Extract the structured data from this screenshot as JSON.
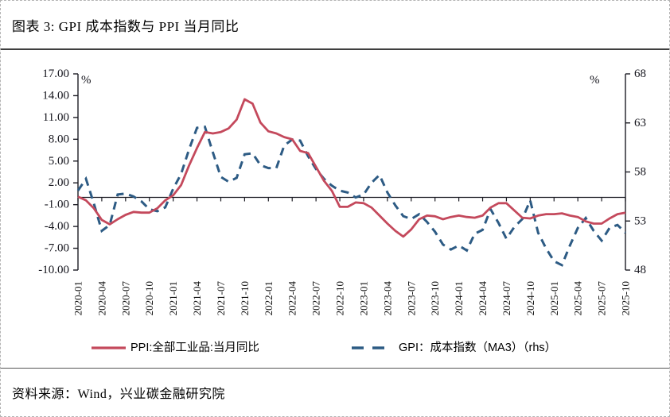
{
  "figure": {
    "title": "图表 3: GPI 成本指数与 PPI 当月同比",
    "source": "资料来源：Wind，兴业碳金融研究院"
  },
  "chart_data": {
    "type": "line",
    "x": [
      "2020-01",
      "2020-02",
      "2020-03",
      "2020-04",
      "2020-05",
      "2020-06",
      "2020-07",
      "2020-08",
      "2020-09",
      "2020-10",
      "2020-11",
      "2020-12",
      "2021-01",
      "2021-02",
      "2021-03",
      "2021-04",
      "2021-05",
      "2021-06",
      "2021-07",
      "2021-08",
      "2021-09",
      "2021-10",
      "2021-11",
      "2021-12",
      "2022-01",
      "2022-02",
      "2022-03",
      "2022-04",
      "2022-05",
      "2022-06",
      "2022-07",
      "2022-08",
      "2022-09",
      "2022-10",
      "2022-11",
      "2022-12",
      "2023-01",
      "2023-02",
      "2023-03",
      "2023-04",
      "2023-05",
      "2023-06",
      "2023-07",
      "2023-08",
      "2023-09",
      "2023-10",
      "2023-11",
      "2023-12",
      "2024-01",
      "2024-02",
      "2024-03",
      "2024-04",
      "2024-05",
      "2024-06",
      "2024-07",
      "2024-08",
      "2024-09",
      "2024-10",
      "2024-11",
      "2024-12",
      "2025-01",
      "2025-02",
      "2025-03",
      "2025-04",
      "2025-05",
      "2025-06",
      "2025-07",
      "2025-08",
      "2025-09",
      "2025-10"
    ],
    "x_tick_every": 3,
    "series": [
      {
        "name": "PPI:全部工业品:当月同比",
        "axis": "left",
        "style": "solid",
        "color": "#c4495c",
        "values": [
          0.1,
          -0.4,
          -1.5,
          -3.1,
          -3.7,
          -3.0,
          -2.4,
          -2.0,
          -2.1,
          -2.1,
          -1.5,
          -0.4,
          0.3,
          1.7,
          4.4,
          6.8,
          9.0,
          8.8,
          9.0,
          9.5,
          10.7,
          13.5,
          12.9,
          10.3,
          9.1,
          8.8,
          8.3,
          8.0,
          6.4,
          6.1,
          4.2,
          2.3,
          0.9,
          -1.3,
          -1.3,
          -0.7,
          -0.8,
          -1.4,
          -2.5,
          -3.6,
          -4.6,
          -5.4,
          -4.4,
          -3.0,
          -2.5,
          -2.6,
          -3.0,
          -2.7,
          -2.5,
          -2.7,
          -2.8,
          -2.5,
          -1.4,
          -0.8,
          -0.8,
          -1.8,
          -2.8,
          -2.9,
          -2.5,
          -2.3,
          -2.3,
          -2.2,
          -2.5,
          -2.7,
          -3.3,
          -3.6,
          -3.6,
          -2.9,
          -2.3,
          -2.1
        ]
      },
      {
        "name": "GPI：成本指数（MA3）（rhs）",
        "axis": "right",
        "style": "dashed",
        "color": "#2d5b84",
        "values": [
          56.1,
          57.3,
          54.8,
          52.0,
          52.6,
          55.7,
          55.8,
          55.5,
          55.0,
          54.2,
          54.0,
          54.4,
          56.3,
          57.8,
          60.3,
          62.5,
          62.6,
          60.0,
          57.5,
          57.0,
          57.4,
          59.8,
          59.9,
          58.7,
          58.4,
          58.4,
          60.7,
          61.3,
          61.2,
          59.6,
          58.3,
          57.3,
          56.6,
          56.1,
          55.9,
          55.4,
          55.7,
          56.9,
          57.7,
          55.9,
          54.6,
          53.5,
          53.2,
          53.7,
          52.9,
          51.9,
          50.6,
          50.1,
          50.5,
          50.0,
          51.7,
          52.1,
          54.2,
          52.8,
          51.2,
          52.4,
          53.2,
          55.1,
          51.8,
          50.2,
          48.9,
          48.5,
          50.5,
          52.3,
          53.3,
          52.0,
          51.0,
          52.3,
          52.6,
          51.8
        ]
      }
    ],
    "left_axis": {
      "unit": "%",
      "min": -10,
      "max": 17,
      "tick_labels": [
        "17.00",
        "14.00",
        "11.00",
        "8.00",
        "5.00",
        "2.00",
        "-1.00",
        "-4.00",
        "-7.00",
        "-10.00"
      ]
    },
    "right_axis": {
      "unit": "%",
      "min": 48,
      "max": 68,
      "tick_labels": [
        "68",
        "63",
        "58",
        "53",
        "48"
      ]
    },
    "baseline_value_left": 0,
    "grid": "off",
    "legend_position": "bottom"
  }
}
